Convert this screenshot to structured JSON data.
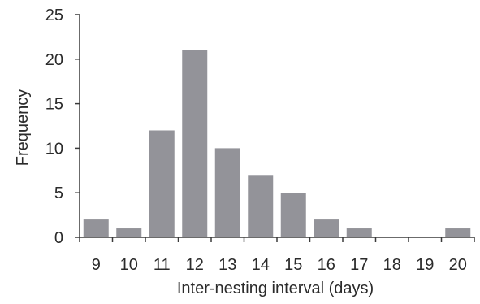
{
  "chart_data": {
    "type": "bar",
    "categories": [
      "9",
      "10",
      "11",
      "12",
      "13",
      "14",
      "15",
      "16",
      "17",
      "18",
      "19",
      "20"
    ],
    "values": [
      2,
      1,
      12,
      21,
      10,
      7,
      5,
      2,
      1,
      0,
      0,
      1
    ],
    "xlabel": "Inter-nesting interval (days)",
    "ylabel": "Frequency",
    "ylim": [
      0,
      25
    ],
    "yticks": [
      0,
      5,
      10,
      15,
      20,
      25
    ],
    "grid": false,
    "bar_color": "#939399",
    "axis_color": "#3a3a3a"
  }
}
